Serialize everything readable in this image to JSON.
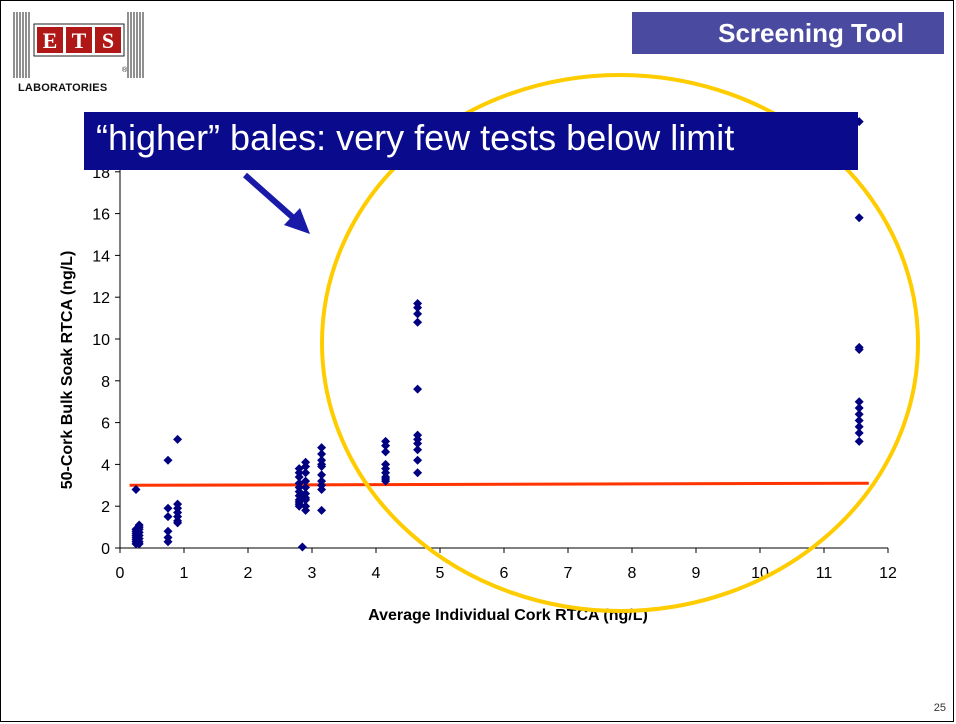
{
  "header": {
    "title": "Screening Tool"
  },
  "logo": {
    "letters": [
      "E",
      "T",
      "S"
    ],
    "subtitle": "LABORATORIES",
    "registered": "®"
  },
  "callout": {
    "text": "“higher” bales: very few tests below limit"
  },
  "slide_number": "25",
  "colors": {
    "points": "#000080",
    "limit_line": "#ff3300",
    "circle": "#ffcc00",
    "header_bg": "#4a4aa0",
    "callout_bg": "#0a0a8c"
  },
  "chart_data": {
    "type": "scatter",
    "xlabel": "Average Individual Cork  RTCA (ng/L)",
    "ylabel": "50-Cork Bulk Soak RTCA (ng/L)",
    "xlim": [
      0,
      12
    ],
    "ylim": [
      0,
      20
    ],
    "x_ticks": [
      0,
      1,
      2,
      3,
      4,
      5,
      6,
      7,
      8,
      9,
      10,
      11,
      12
    ],
    "y_ticks": [
      0,
      2,
      4,
      6,
      8,
      10,
      12,
      14,
      16,
      18
    ],
    "limit_line": {
      "y": 3.0,
      "x_range": [
        0.15,
        11.7
      ],
      "y_end": 3.1
    },
    "series": [
      {
        "x": [
          0.25,
          0.25,
          0.25,
          0.25,
          0.25,
          0.25,
          0.25,
          0.25,
          0.25,
          0.3,
          0.3,
          0.3,
          0.3,
          0.3,
          0.3,
          0.3,
          0.3,
          0.75,
          0.75,
          0.75,
          0.75,
          0.75,
          0.75,
          0.9,
          0.9,
          0.9,
          0.9,
          0.9,
          0.9,
          0.9,
          2.8,
          2.8,
          2.8,
          2.8,
          2.8,
          2.8,
          2.8,
          2.8,
          2.8,
          2.8,
          2.8,
          2.9,
          2.9,
          2.9,
          2.9,
          2.9,
          2.9,
          2.9,
          2.9,
          2.9,
          2.9,
          2.85,
          3.15,
          3.15,
          3.15,
          3.15,
          3.15,
          3.15,
          3.15,
          3.15,
          3.15,
          3.15,
          4.15,
          4.15,
          4.15,
          4.15,
          4.15,
          4.15,
          4.15,
          4.15,
          4.15,
          4.65,
          4.65,
          4.65,
          4.65,
          4.65,
          4.65,
          4.65,
          4.65,
          4.65,
          4.65,
          4.65,
          11.55,
          11.55,
          11.55,
          11.55,
          11.55,
          11.55,
          11.55,
          11.55,
          11.55,
          11.55,
          11.55
        ],
        "y": [
          0.2,
          0.3,
          0.4,
          0.5,
          0.6,
          0.7,
          0.8,
          0.9,
          2.8,
          0.3,
          0.45,
          0.6,
          0.75,
          0.9,
          1.0,
          1.1,
          0.2,
          0.3,
          0.5,
          0.8,
          1.5,
          1.9,
          4.2,
          1.3,
          1.5,
          1.7,
          1.9,
          2.1,
          1.2,
          5.2,
          2.1,
          2.3,
          2.5,
          2.7,
          2.9,
          3.1,
          3.4,
          3.6,
          3.8,
          2.0,
          2.2,
          1.8,
          2.0,
          2.3,
          2.6,
          2.9,
          3.2,
          3.6,
          3.9,
          4.1,
          2.4,
          0.05,
          1.8,
          2.8,
          3.2,
          3.5,
          3.9,
          4.2,
          4.5,
          4.8,
          3.0,
          4.0,
          3.2,
          3.4,
          3.6,
          3.8,
          4.0,
          4.6,
          4.9,
          5.1,
          3.3,
          3.6,
          4.2,
          4.7,
          5.0,
          5.2,
          5.4,
          7.6,
          10.8,
          11.2,
          11.5,
          11.7,
          5.1,
          5.5,
          5.8,
          6.1,
          6.4,
          6.7,
          7.0,
          9.5,
          9.6,
          15.8,
          20.4
        ]
      }
    ],
    "grid": false,
    "legend": "none"
  }
}
